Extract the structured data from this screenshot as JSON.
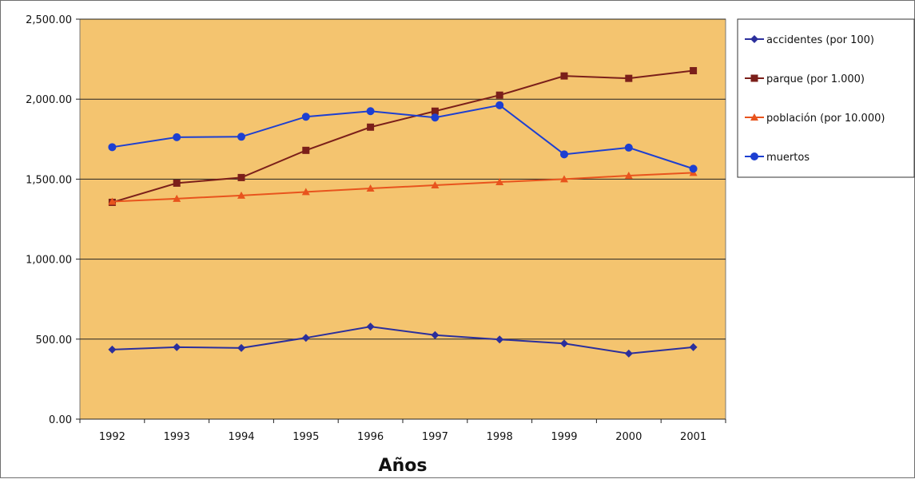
{
  "chart_data": {
    "type": "line",
    "title": "",
    "xlabel": "Años",
    "ylabel": "",
    "ylim": [
      0,
      2500
    ],
    "ytick_labels": [
      "0.00",
      "500.00",
      "1,000.00",
      "1,500.00",
      "2,000.00",
      "2,500.00"
    ],
    "ytick_values": [
      0,
      500,
      1000,
      1500,
      2000,
      2500
    ],
    "grid": true,
    "legend_position": "right",
    "plot_background": "#f4c46f",
    "categories": [
      "1992",
      "1993",
      "1994",
      "1995",
      "1996",
      "1997",
      "1998",
      "1999",
      "2000",
      "2001"
    ],
    "series": [
      {
        "name": "accidentes (por 100)",
        "color": "#2b2f9c",
        "marker": "diamond",
        "values": [
          435,
          450,
          445,
          508,
          578,
          525,
          498,
          473,
          410,
          450
        ]
      },
      {
        "name": "parque (por 1.000)",
        "color": "#7b1f1a",
        "marker": "square",
        "values": [
          1355,
          1475,
          1510,
          1680,
          1825,
          1925,
          2025,
          2145,
          2130,
          2178
        ]
      },
      {
        "name": "población (por 10.000)",
        "color": "#e8541d",
        "marker": "triangle",
        "values": [
          1360,
          1378,
          1398,
          1420,
          1442,
          1462,
          1482,
          1500,
          1522,
          1540
        ]
      },
      {
        "name": "muertos",
        "color": "#1d3fd1",
        "marker": "circle",
        "values": [
          1700,
          1762,
          1765,
          1890,
          1925,
          1885,
          1962,
          1655,
          1697,
          1565
        ]
      }
    ]
  }
}
